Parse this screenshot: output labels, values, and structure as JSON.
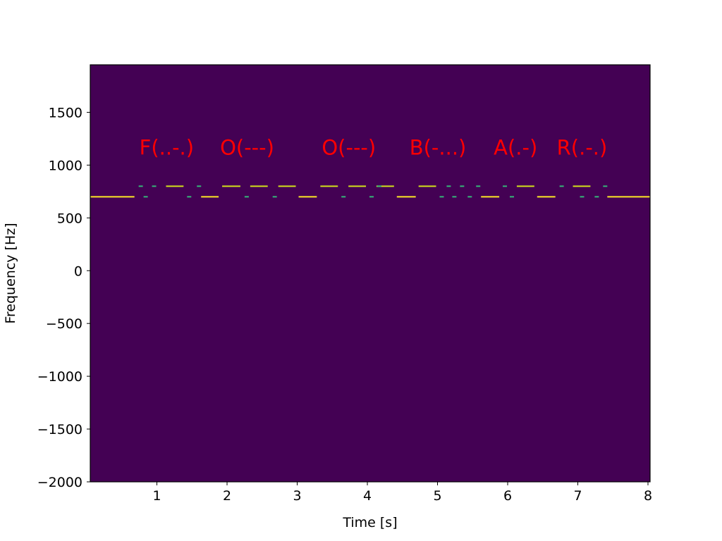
{
  "chart_data": {
    "type": "heatmap",
    "xlabel": "Time [s]",
    "ylabel": "Frequency [Hz]",
    "xlim": [
      0.05,
      8.03
    ],
    "ylim": [
      -2000,
      1950
    ],
    "x_ticks": [
      1,
      2,
      3,
      4,
      5,
      6,
      7,
      8
    ],
    "y_ticks": [
      1500,
      1000,
      500,
      0,
      -500,
      -1000,
      -1500,
      -2000
    ],
    "x_tick_labels": [
      "1",
      "2",
      "3",
      "4",
      "5",
      "6",
      "7",
      "8"
    ],
    "y_tick_labels": [
      "1500",
      "1000",
      "500",
      "0",
      "−500",
      "−1000",
      "−1500",
      "−2000"
    ],
    "grid": false,
    "colormap": "viridis",
    "colors": {
      "background": "#440154",
      "strong": "#fde725",
      "medium": "#d2e21b",
      "weak": "#35b779",
      "annotation": "#ff0000"
    },
    "baseline": {
      "frequency": 700,
      "segments": [
        [
          0.05,
          0.68
        ],
        [
          1.63,
          1.88
        ],
        [
          3.02,
          3.28
        ],
        [
          4.42,
          4.69
        ],
        [
          5.62,
          5.88
        ],
        [
          6.42,
          6.68
        ],
        [
          7.42,
          8.03
        ]
      ],
      "dots": [
        0.84,
        1.46,
        2.28,
        2.68,
        3.66,
        4.06,
        5.06,
        5.24,
        5.46,
        6.06,
        7.06,
        7.27
      ]
    },
    "upper_band": {
      "frequency": 800,
      "dots": [
        0.77,
        0.96,
        1.6,
        4.17,
        5.16,
        5.35,
        5.58,
        5.96,
        6.77,
        7.39
      ],
      "dashes": [
        [
          1.13,
          1.38
        ],
        [
          1.93,
          2.19
        ],
        [
          2.33,
          2.58
        ],
        [
          2.73,
          2.98
        ],
        [
          3.33,
          3.58
        ],
        [
          3.73,
          3.98
        ],
        [
          4.13,
          4.38
        ],
        [
          4.73,
          4.98
        ],
        [
          6.13,
          6.38
        ],
        [
          6.93,
          7.18
        ]
      ]
    },
    "annotations": [
      {
        "text": "F(..-.)",
        "x": 0.75,
        "y": 1100
      },
      {
        "text": "O(---)",
        "x": 1.9,
        "y": 1100
      },
      {
        "text": "O(---)",
        "x": 3.35,
        "y": 1100
      },
      {
        "text": "B(-...)",
        "x": 4.6,
        "y": 1100
      },
      {
        "text": "A(.-)",
        "x": 5.8,
        "y": 1100
      },
      {
        "text": "R(.-.)",
        "x": 6.7,
        "y": 1100
      }
    ]
  }
}
